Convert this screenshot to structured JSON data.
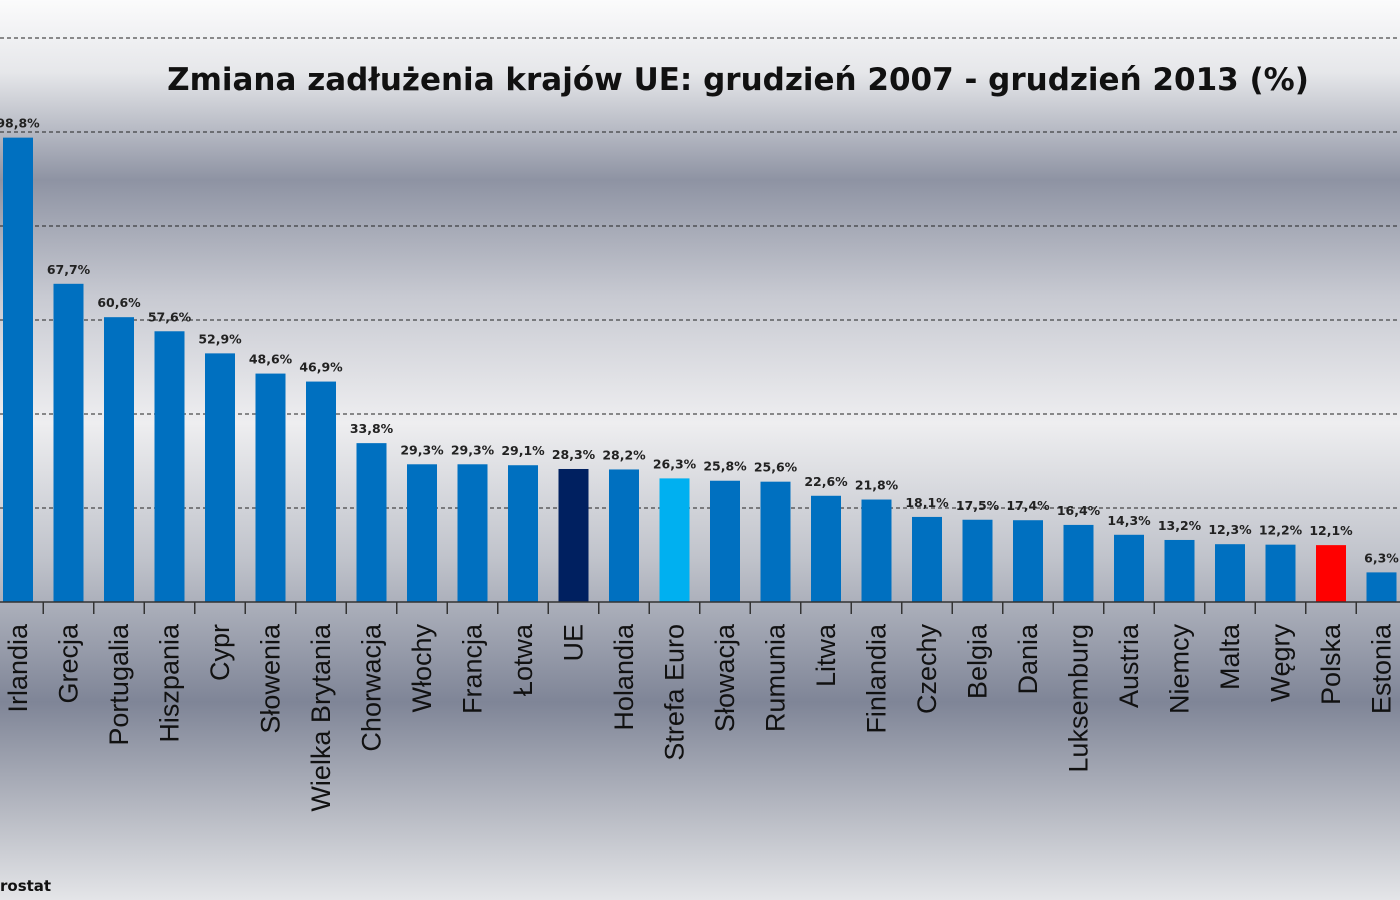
{
  "chart_data": {
    "type": "bar",
    "title": "Zmiana zadłużenia krajów UE: grudzień 2007 - grudzień 2013 (%)",
    "xlabel": "",
    "ylabel": "",
    "ylim": [
      0,
      120
    ],
    "grid": true,
    "grid_step": 20,
    "source": "rostat",
    "categories": [
      "Irlandia",
      "Grecja",
      "Portugalia",
      "Hiszpania",
      "Cypr",
      "Słowenia",
      "Wielka Brytania",
      "Chorwacja",
      "Włochy",
      "Francja",
      "Łotwa",
      "UE",
      "Holandia",
      "Strefa Euro",
      "Słowacja",
      "Rumunia",
      "Litwa",
      "Finlandia",
      "Czechy",
      "Belgia",
      "Dania",
      "Luksemburg",
      "Austria",
      "Niemcy",
      "Malta",
      "Węgry",
      "Polska",
      "Estonia"
    ],
    "values": [
      98.8,
      67.7,
      60.6,
      57.6,
      52.9,
      48.6,
      46.9,
      33.8,
      29.3,
      29.3,
      29.1,
      28.3,
      28.2,
      26.3,
      25.8,
      25.6,
      22.6,
      21.8,
      18.1,
      17.5,
      17.4,
      16.4,
      14.3,
      13.2,
      12.3,
      12.2,
      12.1,
      6.3
    ],
    "value_labels": [
      "98,8%",
      "67,7%",
      "60,6%",
      "57,6%",
      "52,9%",
      "48,6%",
      "46,9%",
      "33,8%",
      "29,3%",
      "29,3%",
      "29,1%",
      "28,3%",
      "28,2%",
      "26,3%",
      "25,8%",
      "25,6%",
      "22,6%",
      "21,8%",
      "18,1%",
      "17,5%",
      "17,4%",
      "16,4%",
      "14,3%",
      "13,2%",
      "12,3%",
      "12,2%",
      "12,1%",
      "6,3%"
    ],
    "colors": {
      "default": "#0070c0",
      "UE": "#002060",
      "Strefa Euro": "#00b0f0",
      "Polska": "#ff0000"
    }
  }
}
